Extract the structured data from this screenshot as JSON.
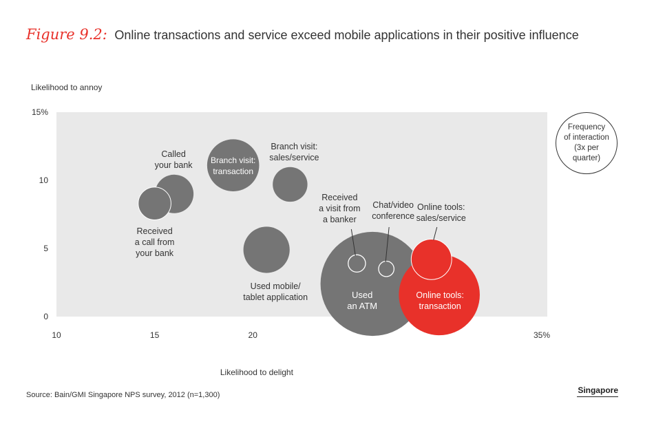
{
  "figure_label": "Figure 9.2:",
  "figure_title": "Online transactions and service exceed mobile applications in their positive influence",
  "source": "Source: Bain/GMI Singapore NPS survey, 2012 (n=1,300)",
  "region": "Singapore",
  "legend_text": "Frequency\nof interaction\n(3x per\nquarter)",
  "colors": {
    "plot_bg": "#e9e9e9",
    "grey_bubble": "#757575",
    "red_bubble": "#e8312a",
    "label": "#333333"
  },
  "chart_data": {
    "type": "scatter",
    "title": "Online transactions and service exceed mobile applications in their positive influence",
    "xlabel": "Likelihood to delight",
    "ylabel": "Likelihood to annoy",
    "xlim": [
      10,
      35
    ],
    "ylim": [
      0,
      15
    ],
    "x_ticks": [
      10,
      15,
      20
    ],
    "x_tick_labels": [
      "10",
      "15",
      "20"
    ],
    "x_end_label": "35%",
    "y_ticks": [
      0,
      5,
      10,
      15
    ],
    "y_tick_labels": [
      "0",
      "5",
      "10",
      "15%"
    ],
    "points": [
      {
        "label": "Called your bank",
        "x": 16.0,
        "y": 9.0,
        "size": 1.0,
        "color": "grey"
      },
      {
        "label": "Received a call from your bank",
        "x": 15.0,
        "y": 8.3,
        "size": 0.85,
        "color": "grey"
      },
      {
        "label": "Branch visit: transaction",
        "x": 19.0,
        "y": 11.1,
        "size": 1.35,
        "color": "grey"
      },
      {
        "label": "Branch visit: sales/service",
        "x": 21.9,
        "y": 9.7,
        "size": 0.9,
        "color": "grey"
      },
      {
        "label": "Used mobile/ tablet application",
        "x": 20.7,
        "y": 4.9,
        "size": 1.2,
        "color": "grey"
      },
      {
        "label": "Used an ATM",
        "x": 26.1,
        "y": 2.4,
        "size": 2.7,
        "color": "grey"
      },
      {
        "label": "Received a visit from a banker",
        "x": 25.3,
        "y": 3.9,
        "size": 0.45,
        "color": "white"
      },
      {
        "label": "Chat/video conference",
        "x": 26.8,
        "y": 3.5,
        "size": 0.4,
        "color": "white"
      },
      {
        "label": "Online tools: sales/service",
        "x": 29.1,
        "y": 4.2,
        "size": 1.05,
        "color": "red"
      },
      {
        "label": "Online tools: transaction",
        "x": 29.5,
        "y": 1.6,
        "size": 2.1,
        "color": "red"
      }
    ]
  },
  "label_lines": {
    "called": [
      "Called",
      "your bank"
    ],
    "received_call": [
      "Received",
      "a call from",
      "your bank"
    ],
    "branch_txn": [
      "Branch visit:",
      "transaction"
    ],
    "branch_sales": [
      "Branch visit:",
      "sales/service"
    ],
    "mobile": [
      "Used mobile/",
      "tablet application"
    ],
    "atm": [
      "Used",
      "an ATM"
    ],
    "banker": [
      "Received",
      "a visit from",
      "a banker"
    ],
    "chat": [
      "Chat/video",
      "conference"
    ],
    "online_sales": [
      "Online tools:",
      "sales/service"
    ],
    "online_txn": [
      "Online tools:",
      "transaction"
    ]
  }
}
